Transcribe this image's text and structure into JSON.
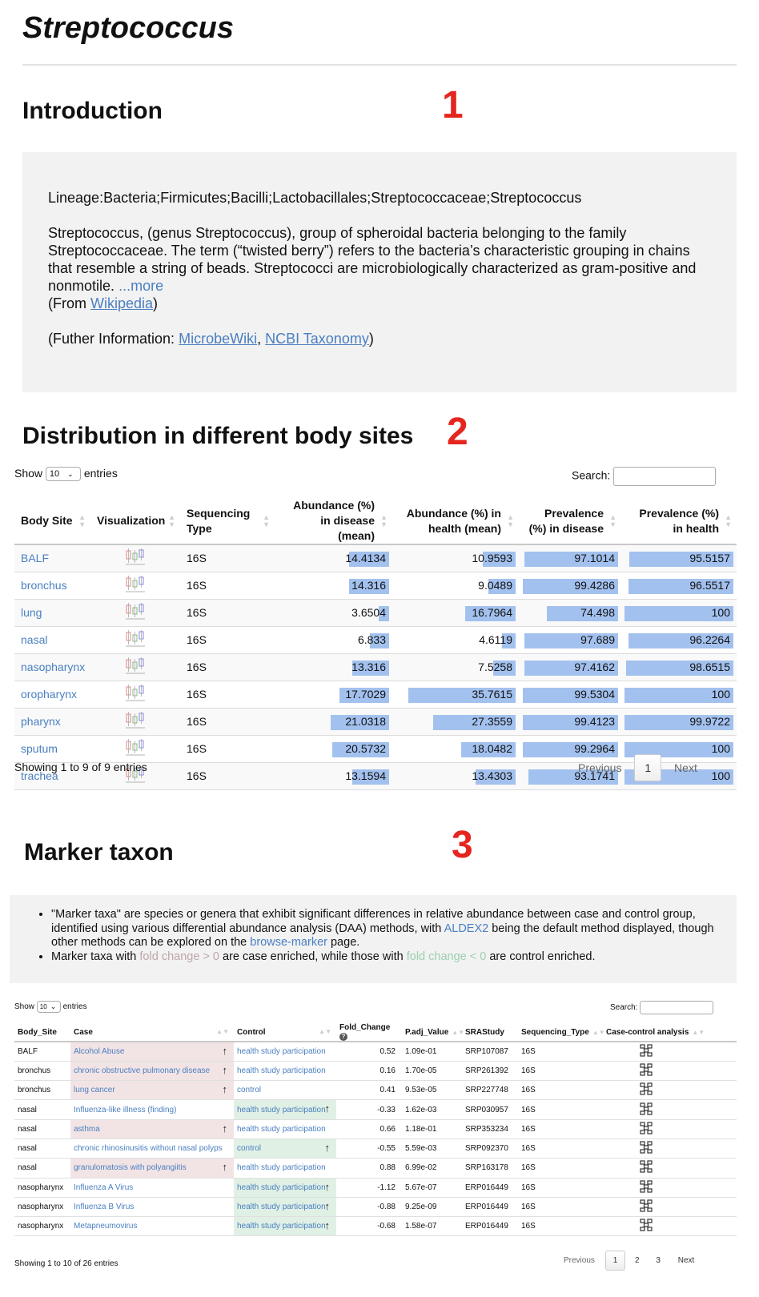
{
  "page_title": "Streptococcus",
  "intro": {
    "heading": "Introduction",
    "number": "1",
    "lineage": "Lineage:Bacteria;Firmicutes;Bacilli;Lactobacillales;Streptococcaceae;Streptococcus",
    "description": "Streptococcus, (genus Streptococcus), group of spheroidal bacteria belonging to the family Streptococcaceae. The term (“twisted berry”) refers to the bacteria’s characteristic grouping in chains that resemble a string of beads. Streptococci are microbiologically characterized as gram-positive and nonmotile.",
    "more_link": "...more",
    "from_prefix": "(From ",
    "from_link": "Wikipedia",
    "from_suffix": ")",
    "further_prefix": "(Futher Information: ",
    "further_link1": "MicrobeWiki",
    "further_sep": ", ",
    "further_link2": "NCBI Taxonomy",
    "further_suffix": ")"
  },
  "distribution": {
    "heading": "Distribution in different body sites",
    "number": "2",
    "show_label": "Show",
    "entries_value": "10",
    "entries_label": "entries",
    "search_label": "Search:",
    "columns": [
      "Body Site",
      "Visualization",
      "Sequencing Type",
      "Abundance (%) in disease (mean)",
      "Abundance (%) in health (mean)",
      "Prevalence (%) in disease",
      "Prevalence (%) in health"
    ],
    "rows": [
      {
        "site": "BALF",
        "seq": "16S",
        "abd": "14.4134",
        "abh": "10.9593",
        "prd": "97.1014",
        "prh": "95.5157",
        "abd_v": 14.4134,
        "abh_v": 10.9593,
        "prd_v": 97.1014,
        "prh_v": 95.5157
      },
      {
        "site": "bronchus",
        "seq": "16S",
        "abd": "14.316",
        "abh": "9.0489",
        "prd": "99.4286",
        "prh": "96.5517",
        "abd_v": 14.316,
        "abh_v": 9.0489,
        "prd_v": 99.4286,
        "prh_v": 96.5517
      },
      {
        "site": "lung",
        "seq": "16S",
        "abd": "3.6504",
        "abh": "16.7964",
        "prd": "74.498",
        "prh": "100",
        "abd_v": 3.6504,
        "abh_v": 16.7964,
        "prd_v": 74.498,
        "prh_v": 100
      },
      {
        "site": "nasal",
        "seq": "16S",
        "abd": "6.833",
        "abh": "4.6119",
        "prd": "97.689",
        "prh": "96.2264",
        "abd_v": 6.833,
        "abh_v": 4.6119,
        "prd_v": 97.689,
        "prh_v": 96.2264
      },
      {
        "site": "nasopharynx",
        "seq": "16S",
        "abd": "13.316",
        "abh": "7.5258",
        "prd": "97.4162",
        "prh": "98.6515",
        "abd_v": 13.316,
        "abh_v": 7.5258,
        "prd_v": 97.4162,
        "prh_v": 98.6515
      },
      {
        "site": "oropharynx",
        "seq": "16S",
        "abd": "17.7029",
        "abh": "35.7615",
        "prd": "99.5304",
        "prh": "100",
        "abd_v": 17.7029,
        "abh_v": 35.7615,
        "prd_v": 99.5304,
        "prh_v": 100
      },
      {
        "site": "pharynx",
        "seq": "16S",
        "abd": "21.0318",
        "abh": "27.3559",
        "prd": "99.4123",
        "prh": "99.9722",
        "abd_v": 21.0318,
        "abh_v": 27.3559,
        "prd_v": 99.4123,
        "prh_v": 99.9722
      },
      {
        "site": "sputum",
        "seq": "16S",
        "abd": "20.5732",
        "abh": "18.0482",
        "prd": "99.2964",
        "prh": "100",
        "abd_v": 20.5732,
        "abh_v": 18.0482,
        "prd_v": 99.2964,
        "prh_v": 100
      },
      {
        "site": "trachea",
        "seq": "16S",
        "abd": "13.1594",
        "abh": "13.4303",
        "prd": "93.1741",
        "prh": "100",
        "abd_v": 13.1594,
        "abh_v": 13.4303,
        "prd_v": 93.1741,
        "prh_v": 100
      }
    ],
    "showing": "Showing 1 to 9 of 9 entries",
    "prev": "Previous",
    "page": "1",
    "next": "Next",
    "bar_color": "#a3c1ee"
  },
  "marker": {
    "heading": "Marker taxon",
    "number": "3",
    "bullet1_a": "\"Marker taxa\" are species or genera that exhibit significant differences in relative abundance between case and control group, identified using various differential abundance analysis (DAA) methods, with ",
    "bullet1_link1": "ALDEX2",
    "bullet1_b": " being the default method displayed, though other methods can be explored on the ",
    "bullet1_link2": "browse-marker",
    "bullet1_c": " page.",
    "bullet2_a": "Marker taxa with ",
    "bullet2_pos": "fold change > 0",
    "bullet2_b": " are case enriched, while those with ",
    "bullet2_neg": "fold change < 0",
    "bullet2_c": " are control enriched.",
    "show_label": "Show",
    "entries_value": "10",
    "entries_label": "entries",
    "search_label": "Search:",
    "columns": [
      "Body_Site",
      "Case",
      "Control",
      "Fold_Change",
      "P.adj_Value",
      "SRAStudy",
      "Sequencing_Type",
      "Case-control analysis"
    ],
    "help_glyph": "?",
    "rows": [
      {
        "site": "BALF",
        "case": "Alcohol Abuse",
        "control": "health study participation",
        "fc": "0.52",
        "p": "1.09e-01",
        "sra": "SRP107087",
        "seq": "16S",
        "enriched": "case"
      },
      {
        "site": "bronchus",
        "case": "chronic obstructive pulmonary disease",
        "control": "health study participation",
        "fc": "0.16",
        "p": "1.70e-05",
        "sra": "SRP261392",
        "seq": "16S",
        "enriched": "case"
      },
      {
        "site": "bronchus",
        "case": "lung cancer",
        "control": "control",
        "fc": "0.41",
        "p": "9.53e-05",
        "sra": "SRP227748",
        "seq": "16S",
        "enriched": "case"
      },
      {
        "site": "nasal",
        "case": "Influenza-like illness (finding)",
        "control": "health study participation",
        "fc": "-0.33",
        "p": "1.62e-03",
        "sra": "SRP030957",
        "seq": "16S",
        "enriched": "control"
      },
      {
        "site": "nasal",
        "case": "asthma",
        "control": "health study participation",
        "fc": "0.66",
        "p": "1.18e-01",
        "sra": "SRP353234",
        "seq": "16S",
        "enriched": "case"
      },
      {
        "site": "nasal",
        "case": "chronic rhinosinusitis without nasal polyps",
        "control": "control",
        "fc": "-0.55",
        "p": "5.59e-03",
        "sra": "SRP092370",
        "seq": "16S",
        "enriched": "control"
      },
      {
        "site": "nasal",
        "case": "granulomatosis with polyangiitis",
        "control": "health study participation",
        "fc": "0.88",
        "p": "6.99e-02",
        "sra": "SRP163178",
        "seq": "16S",
        "enriched": "case"
      },
      {
        "site": "nasopharynx",
        "case": "Influenza A Virus",
        "control": "health study participation",
        "fc": "-1.12",
        "p": "5.67e-07",
        "sra": "ERP016449",
        "seq": "16S",
        "enriched": "control"
      },
      {
        "site": "nasopharynx",
        "case": "Influenza B Virus",
        "control": "health study participation",
        "fc": "-0.88",
        "p": "9.25e-09",
        "sra": "ERP016449",
        "seq": "16S",
        "enriched": "control"
      },
      {
        "site": "nasopharynx",
        "case": "Metapneumovirus",
        "control": "health study participation",
        "fc": "-0.68",
        "p": "1.58e-07",
        "sra": "ERP016449",
        "seq": "16S",
        "enriched": "control"
      }
    ],
    "showing": "Showing 1 to 10 of 26 entries",
    "prev": "Previous",
    "pages": [
      "1",
      "2",
      "3"
    ],
    "next": "Next",
    "arrow_glyph": "↑",
    "case_color": "#f2e4e5",
    "control_color": "#e0f0e5"
  }
}
